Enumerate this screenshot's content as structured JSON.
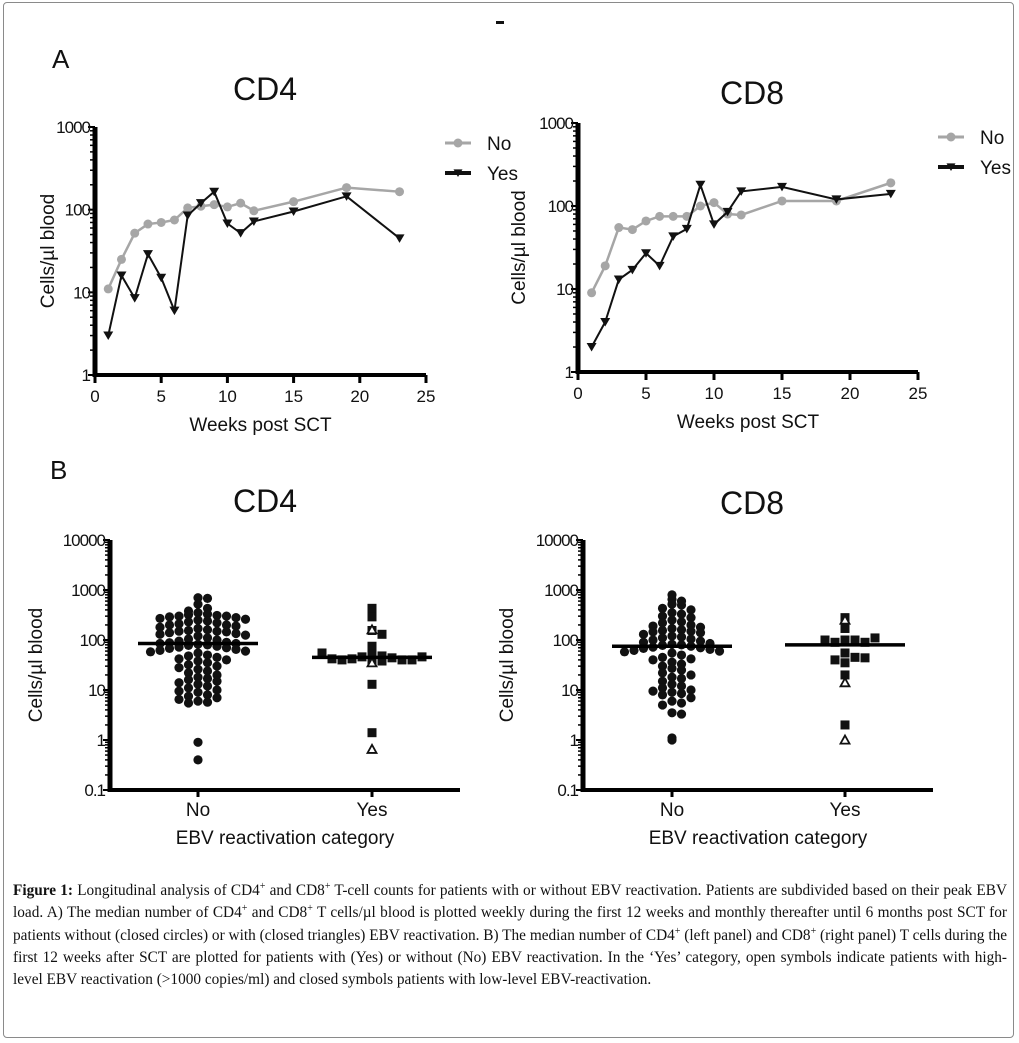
{
  "figure": {
    "panel_a_label": "A",
    "panel_b_label": "B",
    "caption": {
      "label": "Figure 1:",
      "segments": [
        {
          "t": " Longitudinal analysis of CD4"
        },
        {
          "sup": "+"
        },
        {
          "t": " and CD8"
        },
        {
          "sup": "+"
        },
        {
          "t": " T-cell counts for patients with or without EBV reactivation. Patients are subdivided based on their peak EBV load. A) The median number of CD4"
        },
        {
          "sup": "+"
        },
        {
          "t": " and CD8"
        },
        {
          "sup": "+"
        },
        {
          "t": " T cells/µl blood is plotted weekly during the first 12 weeks and monthly thereafter until 6 months post SCT for patients without (closed circles) or with (closed triangles) EBV reactivation. B) The median number of CD4"
        },
        {
          "sup": "+"
        },
        {
          "t": " (left panel) and CD8"
        },
        {
          "sup": "+"
        },
        {
          "t": " (right panel) T cells during the first 12 weeks after SCT are plotted for patients with (Yes) or without (No) EBV reactivation. In the ‘Yes’ category, open symbols indicate patients with high-level EBV reactivation (>1000 copies/ml) and closed symbols patients with low-level EBV-reactivation."
        }
      ]
    }
  },
  "colors": {
    "no_series": "#a6a6a6",
    "yes_series": "#111111",
    "axis": "#000000"
  },
  "chart_data": [
    {
      "id": "A-CD4",
      "type": "line",
      "title": "CD4",
      "xlabel": "Weeks post SCT",
      "ylabel": "Cells/µl blood",
      "xlim": [
        0,
        25
      ],
      "ylim": [
        1,
        1000
      ],
      "yscale": "log",
      "xticks": [
        0,
        5,
        10,
        15,
        20,
        25
      ],
      "yticks": [
        1,
        10,
        100,
        1000
      ],
      "grid": false,
      "legend": "top-right",
      "x": [
        1,
        2,
        3,
        4,
        5,
        6,
        7,
        8,
        9,
        10,
        11,
        12,
        15,
        19,
        23
      ],
      "series": [
        {
          "name": "No",
          "marker": "circle",
          "values": [
            11,
            25,
            52,
            67,
            70,
            75,
            105,
            110,
            115,
            108,
            120,
            97,
            125,
            185,
            165
          ]
        },
        {
          "name": "Yes",
          "marker": "triangle-down",
          "values": [
            3,
            16,
            8.5,
            29,
            15,
            6,
            85,
            120,
            165,
            68,
            52,
            72,
            95,
            145,
            45
          ]
        }
      ]
    },
    {
      "id": "A-CD8",
      "type": "line",
      "title": "CD8",
      "xlabel": "Weeks post SCT",
      "ylabel": "Cells/µl blood",
      "xlim": [
        0,
        25
      ],
      "ylim": [
        1,
        1000
      ],
      "yscale": "log",
      "xticks": [
        0,
        5,
        10,
        15,
        20,
        25
      ],
      "yticks": [
        1,
        10,
        100,
        1000
      ],
      "grid": false,
      "legend": "top-right",
      "x": [
        1,
        2,
        3,
        4,
        5,
        6,
        7,
        8,
        9,
        10,
        11,
        12,
        15,
        19,
        23
      ],
      "series": [
        {
          "name": "No",
          "marker": "circle",
          "values": [
            9,
            19,
            55,
            52,
            66,
            75,
            75,
            75,
            100,
            110,
            80,
            78,
            115,
            115,
            190
          ]
        },
        {
          "name": "Yes",
          "marker": "triangle-down",
          "values": [
            2,
            4,
            13,
            17,
            27,
            19,
            43,
            53,
            180,
            60,
            85,
            150,
            170,
            120,
            140
          ]
        }
      ]
    },
    {
      "id": "B-CD4",
      "type": "scatter",
      "title": "CD4",
      "xlabel": "EBV reactivation category",
      "ylabel": "Cells/µl blood",
      "categories": [
        "No",
        "Yes"
      ],
      "ylim": [
        0.1,
        10000
      ],
      "yscale": "log",
      "yticks": [
        0.1,
        1,
        10,
        100,
        1000,
        10000
      ],
      "grid": false,
      "medians": {
        "No": 85,
        "Yes": 45
      },
      "groups": [
        {
          "category": "No",
          "marker": "circle-filled",
          "values": [
            700,
            680,
            520,
            430,
            380,
            350,
            330,
            320,
            310,
            300,
            300,
            290,
            280,
            270,
            260,
            250,
            240,
            230,
            220,
            210,
            200,
            200,
            190,
            180,
            170,
            160,
            155,
            150,
            150,
            145,
            140,
            135,
            130,
            125,
            120,
            110,
            105,
            100,
            95,
            90,
            88,
            85,
            85,
            82,
            80,
            78,
            75,
            72,
            70,
            68,
            65,
            62,
            60,
            58,
            55,
            50,
            48,
            45,
            42,
            40,
            38,
            35,
            32,
            30,
            28,
            26,
            24,
            22,
            20,
            18,
            17,
            16,
            15,
            14,
            13,
            12,
            11,
            10,
            9.5,
            9,
            8,
            7.5,
            7,
            6.5,
            6,
            5.7,
            5.5,
            0.9,
            0.4
          ]
        },
        {
          "category": "Yes",
          "marker": "square-filled",
          "values": [
            430,
            290,
            155,
            130,
            75,
            52,
            48,
            46,
            44,
            42,
            40,
            40,
            38,
            38,
            40,
            42,
            46,
            55,
            13,
            1.4
          ]
        },
        {
          "category": "Yes",
          "marker": "triangle-open",
          "values": [
            160,
            35,
            0.65
          ]
        }
      ]
    },
    {
      "id": "B-CD8",
      "type": "scatter",
      "title": "CD8",
      "xlabel": "EBV reactivation category",
      "ylabel": "Cells/µl blood",
      "categories": [
        "No",
        "Yes"
      ],
      "ylim": [
        0.1,
        10000
      ],
      "yscale": "log",
      "yticks": [
        0.1,
        1,
        10,
        100,
        1000,
        10000
      ],
      "grid": false,
      "medians": {
        "No": 75,
        "Yes": 80
      },
      "groups": [
        {
          "category": "No",
          "marker": "circle-filled",
          "values": [
            800,
            650,
            600,
            520,
            500,
            430,
            400,
            350,
            330,
            300,
            280,
            250,
            230,
            220,
            200,
            190,
            180,
            170,
            160,
            155,
            150,
            145,
            140,
            130,
            120,
            115,
            110,
            105,
            100,
            95,
            90,
            85,
            82,
            80,
            78,
            75,
            72,
            70,
            68,
            65,
            62,
            60,
            58,
            55,
            50,
            45,
            42,
            40,
            36,
            33,
            30,
            27,
            25,
            22,
            20,
            18,
            17,
            15,
            13,
            12,
            11,
            10,
            9.5,
            9,
            8.5,
            8,
            7,
            6,
            5.5,
            5,
            3.5,
            3.3,
            1.1,
            1.0
          ]
        },
        {
          "category": "Yes",
          "marker": "square-filled",
          "values": [
            280,
            210,
            170,
            100,
            100,
            90,
            90,
            100,
            110,
            55,
            45,
            40,
            35,
            44,
            20,
            2.0
          ]
        },
        {
          "category": "Yes",
          "marker": "triangle-open",
          "values": [
            250,
            14,
            1.0
          ]
        }
      ]
    }
  ]
}
